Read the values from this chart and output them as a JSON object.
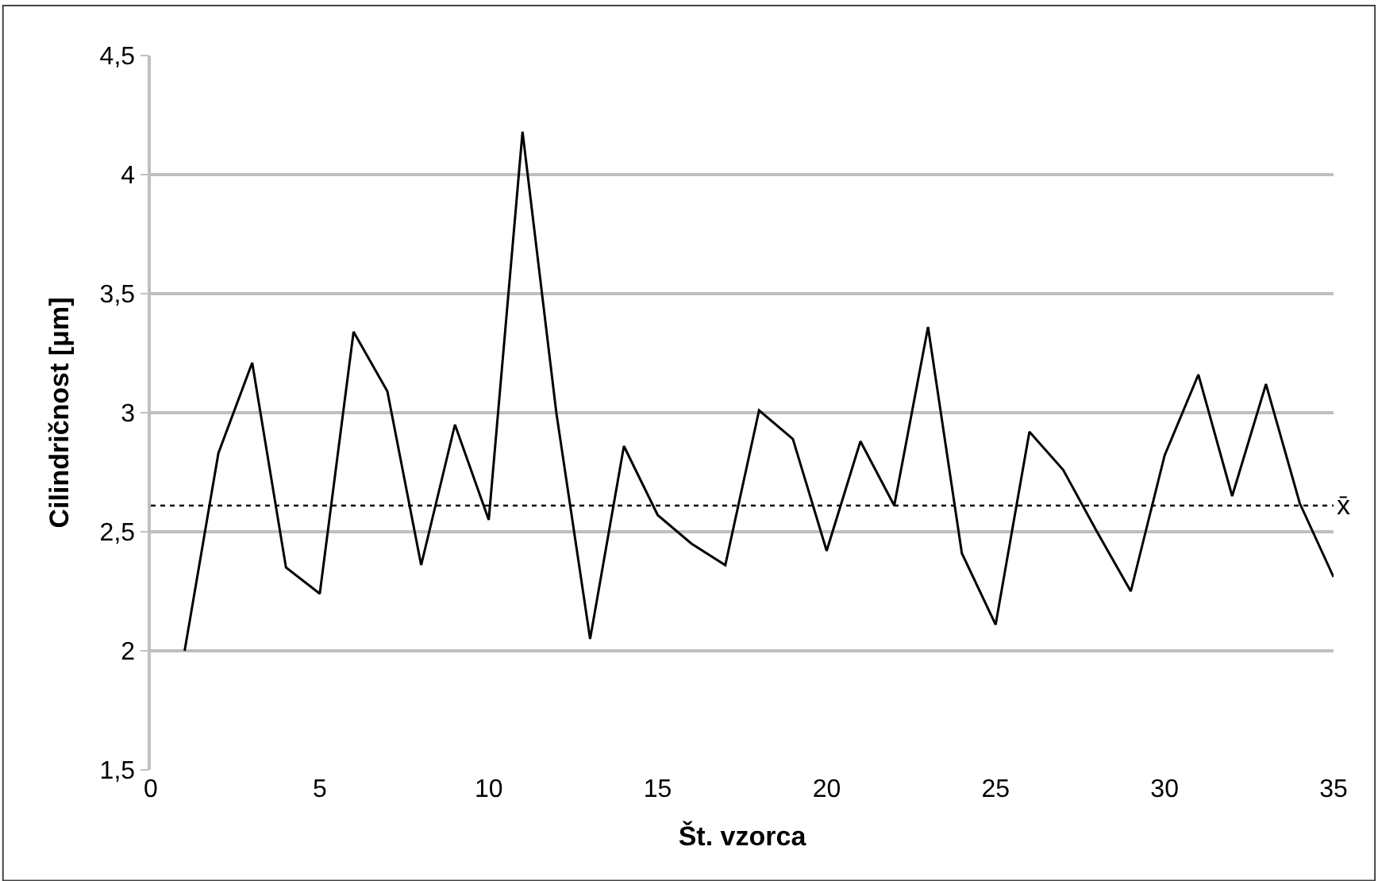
{
  "chart_data": {
    "type": "line",
    "xlabel": "Št. vzorca",
    "ylabel": "Cilindričnost [μm]",
    "x": [
      1,
      2,
      3,
      4,
      5,
      6,
      7,
      8,
      9,
      10,
      11,
      12,
      13,
      14,
      15,
      16,
      17,
      18,
      19,
      20,
      21,
      22,
      23,
      24,
      25,
      26,
      27,
      28,
      29,
      30,
      31,
      32,
      33,
      34,
      35
    ],
    "series": [
      {
        "color": "#000000",
        "values": [
          2.0,
          2.83,
          3.21,
          2.35,
          2.24,
          3.34,
          3.09,
          2.36,
          2.95,
          2.55,
          4.18,
          3.0,
          2.05,
          2.86,
          2.57,
          2.45,
          2.36,
          3.01,
          2.89,
          2.42,
          2.88,
          2.61,
          3.36,
          2.41,
          2.11,
          2.92,
          2.76,
          2.5,
          2.25,
          2.82,
          3.16,
          2.65,
          3.12,
          2.62,
          2.31
        ]
      }
    ],
    "xlim": [
      0,
      35
    ],
    "xticks": [
      0,
      5,
      10,
      15,
      20,
      25,
      30,
      35
    ],
    "ylim": [
      1.5,
      4.5
    ],
    "yticks": [
      {
        "value": 1.5,
        "label": "1,5"
      },
      {
        "value": 2,
        "label": "2"
      },
      {
        "value": 2.5,
        "label": "2,5"
      },
      {
        "value": 3,
        "label": "3"
      },
      {
        "value": 3.5,
        "label": "3,5"
      },
      {
        "value": 4,
        "label": "4"
      },
      {
        "value": 4.5,
        "label": "4,5"
      }
    ],
    "ref_lines": [
      {
        "axis": "y",
        "value": 2.61,
        "label": "x̄",
        "color": "#000000",
        "line_style": "dotted"
      }
    ],
    "grid": "y",
    "legend": false,
    "marker": "none",
    "line_style": "solid"
  }
}
